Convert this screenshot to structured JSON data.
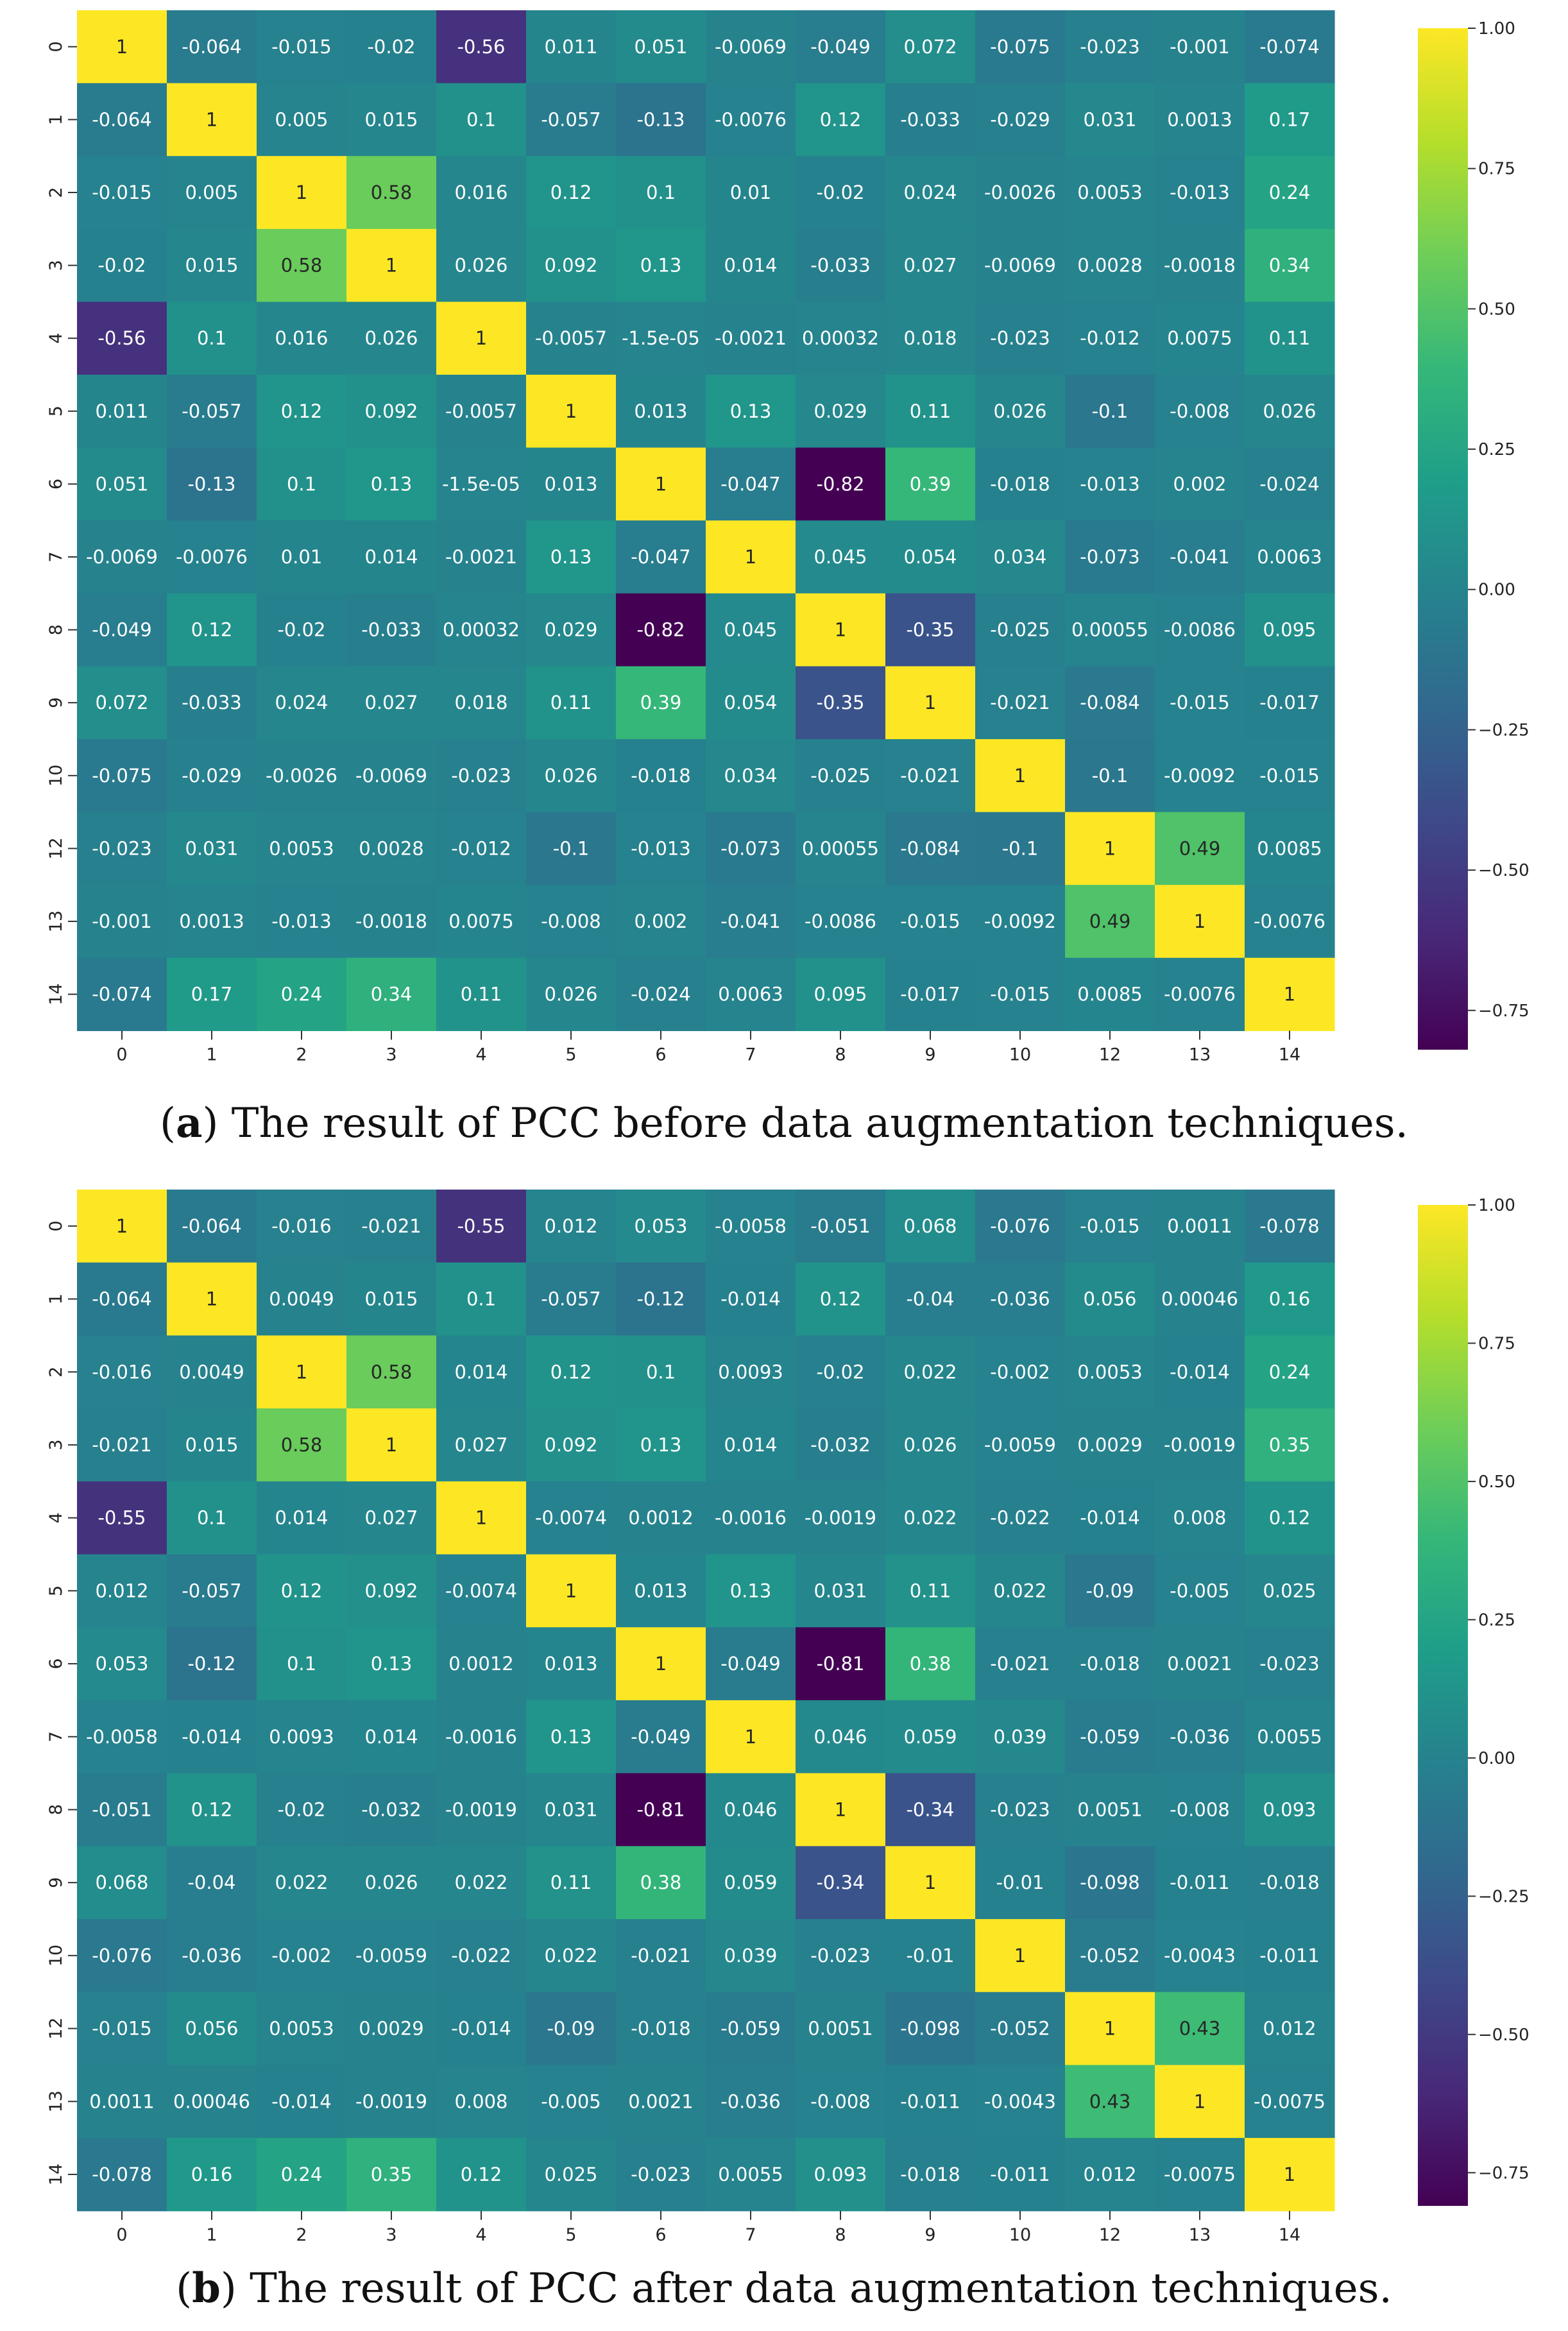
{
  "colors": {
    "scale": [
      "#440154",
      "#482878",
      "#3e4989",
      "#31688e",
      "#26828e",
      "#1f9e89",
      "#35b779",
      "#6ece58",
      "#b5de2b",
      "#fde725"
    ],
    "dark_text": "#262626",
    "light_text": "#ffffff"
  },
  "chart_data": [
    {
      "type": "heatmap",
      "caption_label": "a",
      "caption_text": ") The result of PCC before data augmentation techniques.",
      "row_labels": [
        "0",
        "1",
        "2",
        "3",
        "4",
        "5",
        "6",
        "7",
        "8",
        "9",
        "10",
        "12",
        "13",
        "14"
      ],
      "col_labels": [
        "0",
        "1",
        "2",
        "3",
        "4",
        "5",
        "6",
        "7",
        "8",
        "9",
        "10",
        "12",
        "13",
        "14"
      ],
      "value_range": [
        -0.82,
        1.0
      ],
      "colorbar_ticks": [
        "1.00",
        "0.75",
        "0.50",
        "0.25",
        "0.00",
        "−0.25",
        "−0.50",
        "−0.75"
      ],
      "colorbar_tick_values": [
        1.0,
        0.75,
        0.5,
        0.25,
        0.0,
        -0.25,
        -0.5,
        -0.75
      ],
      "labels": [
        [
          "1",
          "-0.064",
          "-0.015",
          "-0.02",
          "-0.56",
          "0.011",
          "0.051",
          "-0.0069",
          "-0.049",
          "0.072",
          "-0.075",
          "-0.023",
          "-0.001",
          "-0.074"
        ],
        [
          "-0.064",
          "1",
          "0.005",
          "0.015",
          "0.1",
          "-0.057",
          "-0.13",
          "-0.0076",
          "0.12",
          "-0.033",
          "-0.029",
          "0.031",
          "0.0013",
          "0.17"
        ],
        [
          "-0.015",
          "0.005",
          "1",
          "0.58",
          "0.016",
          "0.12",
          "0.1",
          "0.01",
          "-0.02",
          "0.024",
          "-0.0026",
          "0.0053",
          "-0.013",
          "0.24"
        ],
        [
          "-0.02",
          "0.015",
          "0.58",
          "1",
          "0.026",
          "0.092",
          "0.13",
          "0.014",
          "-0.033",
          "0.027",
          "-0.0069",
          "0.0028",
          "-0.0018",
          "0.34"
        ],
        [
          "-0.56",
          "0.1",
          "0.016",
          "0.026",
          "1",
          "-0.0057",
          "-1.5e-05",
          "-0.0021",
          "0.00032",
          "0.018",
          "-0.023",
          "-0.012",
          "0.0075",
          "0.11"
        ],
        [
          "0.011",
          "-0.057",
          "0.12",
          "0.092",
          "-0.0057",
          "1",
          "0.013",
          "0.13",
          "0.029",
          "0.11",
          "0.026",
          "-0.1",
          "-0.008",
          "0.026"
        ],
        [
          "0.051",
          "-0.13",
          "0.1",
          "0.13",
          "-1.5e-05",
          "0.013",
          "1",
          "-0.047",
          "-0.82",
          "0.39",
          "-0.018",
          "-0.013",
          "0.002",
          "-0.024"
        ],
        [
          "-0.0069",
          "-0.0076",
          "0.01",
          "0.014",
          "-0.0021",
          "0.13",
          "-0.047",
          "1",
          "0.045",
          "0.054",
          "0.034",
          "-0.073",
          "-0.041",
          "0.0063"
        ],
        [
          "-0.049",
          "0.12",
          "-0.02",
          "-0.033",
          "0.00032",
          "0.029",
          "-0.82",
          "0.045",
          "1",
          "-0.35",
          "-0.025",
          "0.00055",
          "-0.0086",
          "0.095"
        ],
        [
          "0.072",
          "-0.033",
          "0.024",
          "0.027",
          "0.018",
          "0.11",
          "0.39",
          "0.054",
          "-0.35",
          "1",
          "-0.021",
          "-0.084",
          "-0.015",
          "-0.017"
        ],
        [
          "-0.075",
          "-0.029",
          "-0.0026",
          "-0.0069",
          "-0.023",
          "0.026",
          "-0.018",
          "0.034",
          "-0.025",
          "-0.021",
          "1",
          "-0.1",
          "-0.0092",
          "-0.015"
        ],
        [
          "-0.023",
          "0.031",
          "0.0053",
          "0.0028",
          "-0.012",
          "-0.1",
          "-0.013",
          "-0.073",
          "0.00055",
          "-0.084",
          "-0.1",
          "1",
          "0.49",
          "0.0085"
        ],
        [
          "-0.001",
          "0.0013",
          "-0.013",
          "-0.0018",
          "0.0075",
          "-0.008",
          "0.002",
          "-0.041",
          "-0.0086",
          "-0.015",
          "-0.0092",
          "0.49",
          "1",
          "-0.0076"
        ],
        [
          "-0.074",
          "0.17",
          "0.24",
          "0.34",
          "0.11",
          "0.026",
          "-0.024",
          "0.0063",
          "0.095",
          "-0.017",
          "-0.015",
          "0.0085",
          "-0.0076",
          "1"
        ]
      ]
    },
    {
      "type": "heatmap",
      "caption_label": "b",
      "caption_text": ") The result of PCC after data augmentation techniques.",
      "row_labels": [
        "0",
        "1",
        "2",
        "3",
        "4",
        "5",
        "6",
        "7",
        "8",
        "9",
        "10",
        "12",
        "13",
        "14"
      ],
      "col_labels": [
        "0",
        "1",
        "2",
        "3",
        "4",
        "5",
        "6",
        "7",
        "8",
        "9",
        "10",
        "12",
        "13",
        "14"
      ],
      "value_range": [
        -0.81,
        1.0
      ],
      "colorbar_ticks": [
        "1.00",
        "0.75",
        "0.50",
        "0.25",
        "0.00",
        "−0.25",
        "−0.50",
        "−0.75"
      ],
      "colorbar_tick_values": [
        1.0,
        0.75,
        0.5,
        0.25,
        0.0,
        -0.25,
        -0.5,
        -0.75
      ],
      "labels": [
        [
          "1",
          "-0.064",
          "-0.016",
          "-0.021",
          "-0.55",
          "0.012",
          "0.053",
          "-0.0058",
          "-0.051",
          "0.068",
          "-0.076",
          "-0.015",
          "0.0011",
          "-0.078"
        ],
        [
          "-0.064",
          "1",
          "0.0049",
          "0.015",
          "0.1",
          "-0.057",
          "-0.12",
          "-0.014",
          "0.12",
          "-0.04",
          "-0.036",
          "0.056",
          "0.00046",
          "0.16"
        ],
        [
          "-0.016",
          "0.0049",
          "1",
          "0.58",
          "0.014",
          "0.12",
          "0.1",
          "0.0093",
          "-0.02",
          "0.022",
          "-0.002",
          "0.0053",
          "-0.014",
          "0.24"
        ],
        [
          "-0.021",
          "0.015",
          "0.58",
          "1",
          "0.027",
          "0.092",
          "0.13",
          "0.014",
          "-0.032",
          "0.026",
          "-0.0059",
          "0.0029",
          "-0.0019",
          "0.35"
        ],
        [
          "-0.55",
          "0.1",
          "0.014",
          "0.027",
          "1",
          "-0.0074",
          "0.0012",
          "-0.0016",
          "-0.0019",
          "0.022",
          "-0.022",
          "-0.014",
          "0.008",
          "0.12"
        ],
        [
          "0.012",
          "-0.057",
          "0.12",
          "0.092",
          "-0.0074",
          "1",
          "0.013",
          "0.13",
          "0.031",
          "0.11",
          "0.022",
          "-0.09",
          "-0.005",
          "0.025"
        ],
        [
          "0.053",
          "-0.12",
          "0.1",
          "0.13",
          "0.0012",
          "0.013",
          "1",
          "-0.049",
          "-0.81",
          "0.38",
          "-0.021",
          "-0.018",
          "0.0021",
          "-0.023"
        ],
        [
          "-0.0058",
          "-0.014",
          "0.0093",
          "0.014",
          "-0.0016",
          "0.13",
          "-0.049",
          "1",
          "0.046",
          "0.059",
          "0.039",
          "-0.059",
          "-0.036",
          "0.0055"
        ],
        [
          "-0.051",
          "0.12",
          "-0.02",
          "-0.032",
          "-0.0019",
          "0.031",
          "-0.81",
          "0.046",
          "1",
          "-0.34",
          "-0.023",
          "0.0051",
          "-0.008",
          "0.093"
        ],
        [
          "0.068",
          "-0.04",
          "0.022",
          "0.026",
          "0.022",
          "0.11",
          "0.38",
          "0.059",
          "-0.34",
          "1",
          "-0.01",
          "-0.098",
          "-0.011",
          "-0.018"
        ],
        [
          "-0.076",
          "-0.036",
          "-0.002",
          "-0.0059",
          "-0.022",
          "0.022",
          "-0.021",
          "0.039",
          "-0.023",
          "-0.01",
          "1",
          "-0.052",
          "-0.0043",
          "-0.011"
        ],
        [
          "-0.015",
          "0.056",
          "0.0053",
          "0.0029",
          "-0.014",
          "-0.09",
          "-0.018",
          "-0.059",
          "0.0051",
          "-0.098",
          "-0.052",
          "1",
          "0.43",
          "0.012"
        ],
        [
          "0.0011",
          "0.00046",
          "-0.014",
          "-0.0019",
          "0.008",
          "-0.005",
          "0.0021",
          "-0.036",
          "-0.008",
          "-0.011",
          "-0.0043",
          "0.43",
          "1",
          "-0.0075"
        ],
        [
          "-0.078",
          "0.16",
          "0.24",
          "0.35",
          "0.12",
          "0.025",
          "-0.023",
          "0.0055",
          "0.093",
          "-0.018",
          "-0.011",
          "0.012",
          "-0.0075",
          "1"
        ]
      ]
    }
  ]
}
